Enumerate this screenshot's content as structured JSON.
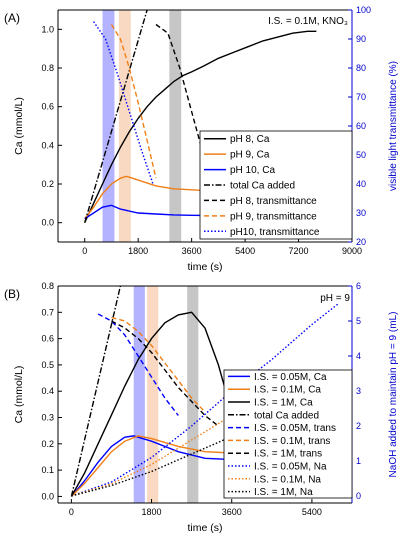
{
  "chart_data": [
    {
      "panel_label": "(A)",
      "type": "line",
      "annotation": "I.S. = 0.1M, KNO₃",
      "xlabel": "time (s)",
      "ylabel": "Ca (mmol/L)",
      "y2label": "visible light transmittance (%)",
      "xlim": [
        -900,
        9000
      ],
      "ylim": [
        -0.1,
        1.1
      ],
      "y2lim": [
        20,
        100
      ],
      "x_ticks": [
        0,
        1800,
        3600,
        5400,
        7200,
        9000
      ],
      "y_ticks": [
        0.0,
        0.2,
        0.4,
        0.6,
        0.8,
        1.0
      ],
      "y2_ticks": [
        20,
        30,
        40,
        50,
        60,
        70,
        80,
        90,
        100
      ],
      "x_tick_labels": [
        "0",
        "1800",
        "3600",
        "5400",
        "7200",
        "9000"
      ],
      "y_tick_labels": [
        "0.0",
        "0.2",
        "0.4",
        "0.6",
        "0.8",
        "1.0"
      ],
      "y2_tick_labels": [
        "20",
        "30",
        "40",
        "50",
        "60",
        "70",
        "80",
        "90",
        "100"
      ],
      "shaded_bands": [
        {
          "x0": 600,
          "x1": 1000,
          "color": "#8080ff"
        },
        {
          "x0": 1150,
          "x1": 1550,
          "color": "#f5c09a"
        },
        {
          "x0": 2850,
          "x1": 3250,
          "color": "#a0a0a0"
        }
      ],
      "series": [
        {
          "name": "pH 8, Ca",
          "axis": "left",
          "color": "#000000",
          "dash": "solid",
          "x": [
            0,
            300,
            600,
            900,
            1200,
            1500,
            1800,
            2100,
            2400,
            2700,
            3000,
            3300,
            3600,
            4000,
            4500,
            5000,
            5500,
            6000,
            6500,
            7000,
            7500,
            7800
          ],
          "y": [
            0.0,
            0.1,
            0.2,
            0.3,
            0.39,
            0.47,
            0.54,
            0.6,
            0.65,
            0.69,
            0.73,
            0.76,
            0.78,
            0.81,
            0.85,
            0.88,
            0.91,
            0.94,
            0.96,
            0.98,
            0.99,
            0.99
          ]
        },
        {
          "name": "pH 9, Ca",
          "axis": "left",
          "color": "#f07f17",
          "dash": "solid",
          "x": [
            0,
            300,
            600,
            900,
            1200,
            1400,
            1800,
            2400,
            3000,
            3600,
            4200,
            4500
          ],
          "y": [
            0.02,
            0.08,
            0.15,
            0.2,
            0.23,
            0.24,
            0.22,
            0.19,
            0.175,
            0.17,
            0.165,
            0.16
          ]
        },
        {
          "name": "pH 10, Ca",
          "axis": "left",
          "color": "#0000ff",
          "dash": "solid",
          "x": [
            0,
            300,
            600,
            900,
            1200,
            1800,
            2400,
            3000,
            3600,
            4200,
            4500
          ],
          "y": [
            0.02,
            0.05,
            0.08,
            0.09,
            0.07,
            0.05,
            0.045,
            0.04,
            0.038,
            0.037,
            0.035
          ]
        },
        {
          "name": "total Ca added",
          "axis": "left",
          "color": "#000000",
          "dash": "dashdot",
          "x": [
            0,
            2100
          ],
          "y": [
            0.0,
            1.1
          ]
        },
        {
          "name": "pH 8, transmittance",
          "axis": "right",
          "color": "#000000",
          "dash": "dash",
          "x": [
            2400,
            2800,
            3200,
            3600,
            4000,
            4400
          ],
          "y": [
            95,
            92,
            80,
            65,
            50,
            38
          ]
        },
        {
          "name": "pH 9, transmittance",
          "axis": "right",
          "color": "#f07f17",
          "dash": "dash",
          "x": [
            900,
            1200,
            1500,
            1800,
            2100,
            2400
          ],
          "y": [
            95,
            90,
            80,
            68,
            55,
            42
          ]
        },
        {
          "name": "pH10, transmittance",
          "axis": "right",
          "color": "#0000ff",
          "dash": "dot",
          "x": [
            300,
            700,
            1100,
            1500,
            1900,
            2300
          ],
          "y": [
            96,
            90,
            78,
            65,
            52,
            40
          ]
        }
      ]
    },
    {
      "panel_label": "(B)",
      "type": "line",
      "annotation": "pH = 9",
      "xlabel": "time (s)",
      "ylabel": "Ca (mmol/L)",
      "y2label": "NaOH added to maintain pH = 9 (mL)",
      "xlim": [
        -300,
        6300
      ],
      "ylim": [
        -0.025,
        0.8
      ],
      "y2lim": [
        -0.2,
        6
      ],
      "x_ticks": [
        0,
        1800,
        3600,
        5400
      ],
      "y_ticks": [
        0.0,
        0.1,
        0.2,
        0.3,
        0.4,
        0.5,
        0.6,
        0.7,
        0.8
      ],
      "y2_ticks": [
        0,
        1,
        2,
        3,
        4,
        5,
        6
      ],
      "x_tick_labels": [
        "0",
        "1800",
        "3600",
        "5400"
      ],
      "y_tick_labels": [
        "0.0",
        "0.1",
        "0.2",
        "0.3",
        "0.4",
        "0.5",
        "0.6",
        "0.7",
        "0.8"
      ],
      "y2_tick_labels": [
        "0",
        "1",
        "2",
        "3",
        "4",
        "5",
        "6"
      ],
      "shaded_bands": [
        {
          "x0": 1400,
          "x1": 1650,
          "color": "#8080ff"
        },
        {
          "x0": 1700,
          "x1": 1950,
          "color": "#f5c09a"
        },
        {
          "x0": 2600,
          "x1": 2850,
          "color": "#a0a0a0"
        }
      ],
      "series": [
        {
          "name": "I.S. = 0.05M, Ca",
          "axis": "left",
          "color": "#0000ff",
          "dash": "solid",
          "x": [
            0,
            300,
            600,
            900,
            1200,
            1400,
            1800,
            2400,
            3000,
            3600
          ],
          "y": [
            0.0,
            0.06,
            0.13,
            0.19,
            0.225,
            0.23,
            0.21,
            0.17,
            0.145,
            0.14
          ]
        },
        {
          "name": "I.S. = 0.1M, Ca",
          "axis": "left",
          "color": "#f07f17",
          "dash": "solid",
          "x": [
            0,
            300,
            600,
            900,
            1200,
            1500,
            1800,
            2400,
            3000,
            3600
          ],
          "y": [
            0.0,
            0.05,
            0.11,
            0.17,
            0.21,
            0.23,
            0.22,
            0.19,
            0.17,
            0.165
          ]
        },
        {
          "name": "I.S. = 1M, Ca",
          "axis": "left",
          "color": "#000000",
          "dash": "solid",
          "x": [
            0,
            300,
            600,
            900,
            1200,
            1500,
            1800,
            2100,
            2400,
            2700,
            3000,
            3300,
            3600
          ],
          "y": [
            0.0,
            0.09,
            0.2,
            0.31,
            0.42,
            0.52,
            0.6,
            0.66,
            0.69,
            0.7,
            0.64,
            0.5,
            0.32
          ]
        },
        {
          "name": "total Ca added",
          "axis": "left",
          "color": "#000000",
          "dash": "dashdot",
          "x": [
            0,
            1100
          ],
          "y": [
            0.0,
            0.8
          ]
        },
        {
          "name": "I.S. = 0.05M, trans",
          "axis": "right",
          "color": "#0000ff",
          "dash": "dash",
          "x": [
            600,
            900,
            1200,
            1500,
            1800,
            2100,
            2400
          ],
          "y": [
            5.2,
            5.0,
            4.6,
            4.0,
            3.4,
            2.8,
            2.3
          ]
        },
        {
          "name": "I.S. = 0.1M, trans",
          "axis": "right",
          "color": "#f07f17",
          "dash": "dash",
          "x": [
            900,
            1200,
            1500,
            1800,
            2100,
            2400,
            2700,
            3000
          ],
          "y": [
            5.1,
            5.0,
            4.7,
            4.3,
            3.8,
            3.3,
            2.8,
            2.4
          ]
        },
        {
          "name": "I.S. = 1M, trans",
          "axis": "right",
          "color": "#000000",
          "dash": "dash",
          "x": [
            900,
            1200,
            1500,
            1800,
            2100,
            2400,
            2700,
            3000,
            3300
          ],
          "y": [
            5.0,
            4.8,
            4.5,
            4.1,
            3.6,
            3.1,
            2.7,
            2.3,
            2.0
          ]
        },
        {
          "name": "I.S. = 0.05M, Na",
          "axis": "right",
          "color": "#0000ff",
          "dash": "dot",
          "x": [
            0,
            900,
            1800,
            2700,
            3600,
            4500,
            5400,
            6000
          ],
          "y": [
            0.0,
            0.4,
            1.1,
            2.0,
            3.0,
            3.9,
            4.9,
            5.5
          ]
        },
        {
          "name": "I.S. = 0.1M, Na",
          "axis": "right",
          "color": "#f07f17",
          "dash": "dot",
          "x": [
            0,
            900,
            1800,
            2700,
            3600,
            4200
          ],
          "y": [
            0.0,
            0.35,
            0.9,
            1.6,
            2.3,
            2.8
          ]
        },
        {
          "name": "I.S. = 1M, Na",
          "axis": "right",
          "color": "#000000",
          "dash": "dot",
          "x": [
            0,
            900,
            1800,
            2700,
            3600
          ],
          "y": [
            0.0,
            0.3,
            0.7,
            1.2,
            1.7
          ]
        }
      ]
    }
  ]
}
